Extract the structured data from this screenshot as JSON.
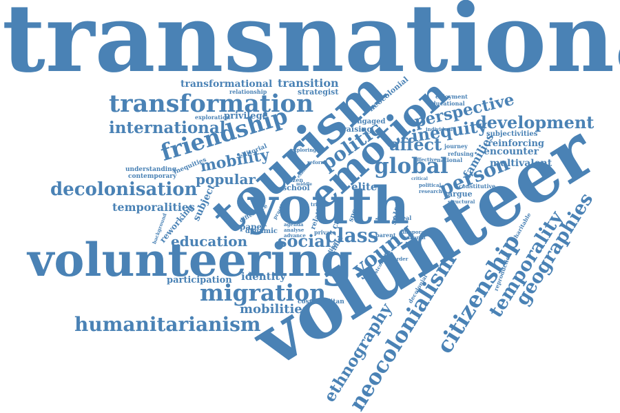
{
  "colors": {
    "word": "#4A82B5"
  },
  "words": [
    {
      "id": "transnational",
      "text": "transnational"
    },
    {
      "id": "volunteer",
      "text": "volunteer"
    },
    {
      "id": "volunteering",
      "text": "volunteering"
    },
    {
      "id": "tourism",
      "text": "tourism"
    },
    {
      "id": "youth",
      "text": "youth"
    },
    {
      "id": "emotion",
      "text": "emotion"
    },
    {
      "id": "transformation",
      "text": "transformation"
    },
    {
      "id": "friendship",
      "text": "friendship"
    },
    {
      "id": "decolonisation",
      "text": "decolonisation"
    },
    {
      "id": "international",
      "text": "international"
    },
    {
      "id": "development",
      "text": "development"
    },
    {
      "id": "perspective",
      "text": "perspective"
    },
    {
      "id": "inequity",
      "text": "inequity"
    },
    {
      "id": "global",
      "text": "global"
    },
    {
      "id": "person",
      "text": "person"
    },
    {
      "id": "affect",
      "text": "affect"
    },
    {
      "id": "politic",
      "text": "politic"
    },
    {
      "id": "mobility",
      "text": "mobility"
    },
    {
      "id": "popular",
      "text": "popular"
    },
    {
      "id": "temporalities",
      "text": "temporalities"
    },
    {
      "id": "education",
      "text": "education"
    },
    {
      "id": "social",
      "text": "social"
    },
    {
      "id": "class",
      "text": "class"
    },
    {
      "id": "young",
      "text": "young"
    },
    {
      "id": "migration",
      "text": "migration"
    },
    {
      "id": "humanitarianism",
      "text": "humanitarianism"
    },
    {
      "id": "mobilities",
      "text": "mobilities"
    },
    {
      "id": "participation",
      "text": "participation"
    },
    {
      "id": "identity",
      "text": "identity"
    },
    {
      "id": "ethnography",
      "text": "ethnography"
    },
    {
      "id": "neocolonialism",
      "text": "neocolonialism"
    },
    {
      "id": "citizenship",
      "text": "citizenship"
    },
    {
      "id": "temporality",
      "text": "temporality"
    },
    {
      "id": "geographies",
      "text": "geographies"
    },
    {
      "id": "transformational",
      "text": "transformational"
    },
    {
      "id": "transition",
      "text": "transition"
    },
    {
      "id": "strategist",
      "text": "strategist"
    },
    {
      "id": "relationship",
      "text": "relationship"
    },
    {
      "id": "privilege",
      "text": "privilege"
    },
    {
      "id": "exploration",
      "text": "exploration"
    },
    {
      "id": "neocolonial",
      "text": "neocolonial"
    },
    {
      "id": "enjoyment",
      "text": "enjoyment"
    },
    {
      "id": "educational",
      "text": "educational"
    },
    {
      "id": "engaged",
      "text": "engaged"
    },
    {
      "id": "raising",
      "text": "raising"
    },
    {
      "id": "subjectivities",
      "text": "subjectivities"
    },
    {
      "id": "reinforcing",
      "text": "reinforcing"
    },
    {
      "id": "encounter",
      "text": "encounter"
    },
    {
      "id": "multivalent",
      "text": "multivalent"
    },
    {
      "id": "families",
      "text": "families"
    },
    {
      "id": "journey",
      "text": "journey"
    },
    {
      "id": "refusing",
      "text": "refusing"
    },
    {
      "id": "individual",
      "text": "individual"
    },
    {
      "id": "national",
      "text": "national"
    },
    {
      "id": "affective",
      "text": "affective"
    },
    {
      "id": "exploring",
      "text": "exploring"
    },
    {
      "id": "editorial",
      "text": "editorial"
    },
    {
      "id": "inequities",
      "text": "inequities"
    },
    {
      "id": "understanding",
      "text": "understanding"
    },
    {
      "id": "contemporary",
      "text": "contemporary"
    },
    {
      "id": "reform",
      "text": "reform"
    },
    {
      "id": "school",
      "text": "school"
    },
    {
      "id": "elite",
      "text": "elite"
    },
    {
      "id": "citizen",
      "text": "citizen"
    },
    {
      "id": "argue",
      "text": "argue"
    },
    {
      "id": "constitutive",
      "text": "constitutive"
    },
    {
      "id": "political",
      "text": "political"
    },
    {
      "id": "research",
      "text": "research"
    },
    {
      "id": "structural",
      "text": "structural"
    },
    {
      "id": "charitable",
      "text": "charitable"
    },
    {
      "id": "subject",
      "text": "subject"
    },
    {
      "id": "reworking",
      "text": "reworking"
    },
    {
      "id": "background",
      "text": "background"
    },
    {
      "id": "difference",
      "text": "difference"
    },
    {
      "id": "paper",
      "text": "paper"
    },
    {
      "id": "dynamic",
      "text": "dynamic"
    },
    {
      "id": "relation",
      "text": "relation"
    },
    {
      "id": "agenda",
      "text": "agenda"
    },
    {
      "id": "analyse",
      "text": "analyse"
    },
    {
      "id": "advance",
      "text": "advance"
    },
    {
      "id": "care",
      "text": "care"
    },
    {
      "id": "private",
      "text": "private"
    },
    {
      "id": "self",
      "text": "self"
    },
    {
      "id": "reveal",
      "text": "reveal"
    },
    {
      "id": "parent",
      "text": "parent"
    },
    {
      "id": "diaspora",
      "text": "diaspora"
    },
    {
      "id": "subaran",
      "text": "subaran"
    },
    {
      "id": "sport",
      "text": "sport"
    },
    {
      "id": "thesis",
      "text": "thesis"
    },
    {
      "id": "reading",
      "text": "reading"
    },
    {
      "id": "child",
      "text": "child"
    },
    {
      "id": "cosmopolitan",
      "text": "cosmopolitan"
    },
    {
      "id": "decolonial",
      "text": "decolonial"
    },
    {
      "id": "reproduction",
      "text": "reproduction"
    },
    {
      "id": "border",
      "text": "border"
    },
    {
      "id": "postcolonial",
      "text": "postcolonial"
    },
    {
      "id": "practice",
      "text": "practice"
    },
    {
      "id": "examine",
      "text": "examine"
    },
    {
      "id": "critical",
      "text": "critical"
    },
    {
      "id": "trip",
      "text": "trip"
    },
    {
      "id": "middle",
      "text": "middle"
    }
  ]
}
